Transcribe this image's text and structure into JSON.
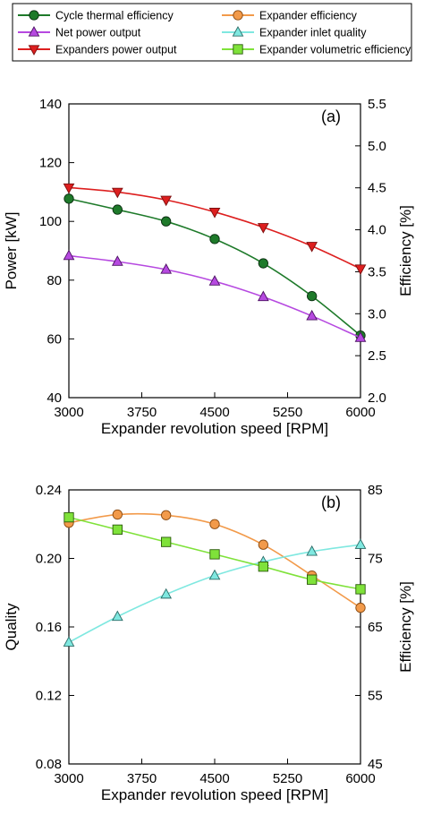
{
  "legend": [
    {
      "key": "cte",
      "label": "Cycle thermal efficiency"
    },
    {
      "key": "ee",
      "label": "Expander efficiency"
    },
    {
      "key": "npo",
      "label": "Net power output"
    },
    {
      "key": "eiq",
      "label": "Expander inlet quality"
    },
    {
      "key": "epo",
      "label": "Expanders power output"
    },
    {
      "key": "eve",
      "label": "Expander volumetric efficiency"
    }
  ],
  "chart_data": [
    {
      "type": "line",
      "panel_label": "(a)",
      "xlabel": "Expander revolution speed [RPM]",
      "ylabel": "Power [kW]",
      "y2label": "Efficiency [%]",
      "xlim": [
        3000,
        6000
      ],
      "ylim": [
        40,
        140
      ],
      "y2lim": [
        2.0,
        5.5
      ],
      "x_ticks": [
        "3000",
        "3750",
        "4500",
        "5250",
        "6000"
      ],
      "y_ticks": [
        "40",
        "60",
        "80",
        "100",
        "120",
        "140"
      ],
      "y2_ticks": [
        "2.0",
        "2.5",
        "3.0",
        "3.5",
        "4.0",
        "4.5",
        "5.0",
        "5.5"
      ],
      "grid": false,
      "x": [
        3000,
        3500,
        4000,
        4500,
        5000,
        5500,
        6000
      ],
      "series": [
        {
          "key": "epo",
          "name": "Expanders power output",
          "axis": "left",
          "marker": "triangle-down",
          "color": "#dd1f1f",
          "edge": "#7a0e0e",
          "values": [
            111.5,
            110.0,
            107.3,
            103.2,
            98.0,
            91.6,
            83.9
          ]
        },
        {
          "key": "cte",
          "name": "Cycle thermal efficiency",
          "axis": "right",
          "marker": "circle",
          "color": "#1e7a2a",
          "edge": "#0a2e10",
          "values": [
            4.37,
            4.24,
            4.1,
            3.89,
            3.6,
            3.21,
            2.74
          ]
        },
        {
          "key": "npo",
          "name": "Net power output",
          "axis": "left",
          "marker": "triangle-up",
          "color": "#b649e0",
          "edge": "#4a1060",
          "values": [
            88.3,
            86.3,
            83.6,
            79.6,
            74.3,
            67.8,
            60.4
          ]
        }
      ]
    },
    {
      "type": "line",
      "panel_label": "(b)",
      "xlabel": "Expander revolution speed [RPM]",
      "ylabel": "Quality",
      "y2label": "Efficiency [%]",
      "xlim": [
        3000,
        6000
      ],
      "ylim": [
        0.08,
        0.24
      ],
      "y2lim": [
        45,
        85
      ],
      "x_ticks": [
        "3000",
        "3750",
        "4500",
        "5250",
        "6000"
      ],
      "y_ticks": [
        "0.08",
        "0.12",
        "0.16",
        "0.20",
        "0.24"
      ],
      "y2_ticks": [
        "45",
        "55",
        "65",
        "75",
        "85"
      ],
      "grid": false,
      "x": [
        3000,
        3500,
        4000,
        4500,
        5000,
        5500,
        6000
      ],
      "series": [
        {
          "key": "ee",
          "name": "Expander efficiency",
          "axis": "right",
          "marker": "circle",
          "color": "#f29a4a",
          "edge": "#8a4a10",
          "values": [
            80.2,
            81.4,
            81.3,
            80.0,
            77.0,
            72.5,
            67.8
          ]
        },
        {
          "key": "eiq",
          "name": "Expander inlet quality",
          "axis": "left",
          "marker": "triangle-up",
          "color": "#7fe8e0",
          "edge": "#2a6a66",
          "values": [
            0.151,
            0.166,
            0.179,
            0.19,
            0.198,
            0.204,
            0.208
          ]
        },
        {
          "key": "eve",
          "name": "Expander volumetric efficiency",
          "axis": "right",
          "marker": "square",
          "color": "#7fe23a",
          "edge": "#2a5a0a",
          "values": [
            81.0,
            79.2,
            77.4,
            75.6,
            73.8,
            71.9,
            70.5
          ]
        }
      ]
    }
  ]
}
